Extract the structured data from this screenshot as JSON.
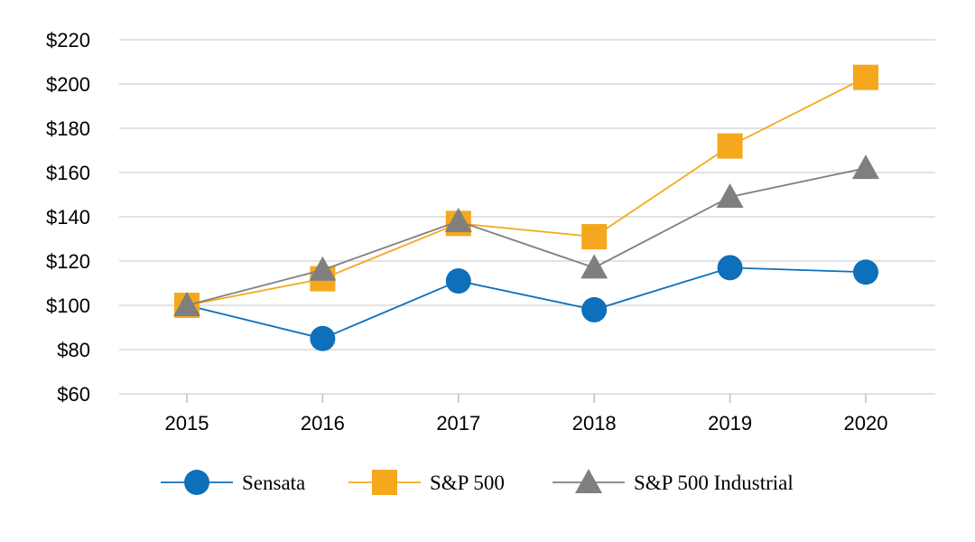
{
  "chart_data": {
    "type": "line",
    "title": "",
    "xlabel": "",
    "ylabel": "",
    "categories": [
      "2015",
      "2016",
      "2017",
      "2018",
      "2019",
      "2020"
    ],
    "ylim": [
      60,
      220
    ],
    "yticks": [
      60,
      80,
      100,
      120,
      140,
      160,
      180,
      200,
      220
    ],
    "ytick_labels": [
      "$60",
      "$80",
      "$100",
      "$120",
      "$140",
      "$160",
      "$180",
      "$200",
      "$220"
    ],
    "grid": true,
    "legend_position": "bottom",
    "series": [
      {
        "name": "Sensata",
        "values": [
          100,
          85,
          111,
          98,
          117,
          115
        ],
        "color": "#0e6fba",
        "marker": "circle"
      },
      {
        "name": "S&P 500",
        "values": [
          100,
          112,
          137,
          131,
          172,
          203
        ],
        "color": "#f5a81d",
        "marker": "square"
      },
      {
        "name": "S&P 500 Industrial",
        "values": [
          100,
          116,
          138,
          117,
          149,
          162
        ],
        "color": "#7f7f7f",
        "marker": "triangle"
      }
    ]
  }
}
